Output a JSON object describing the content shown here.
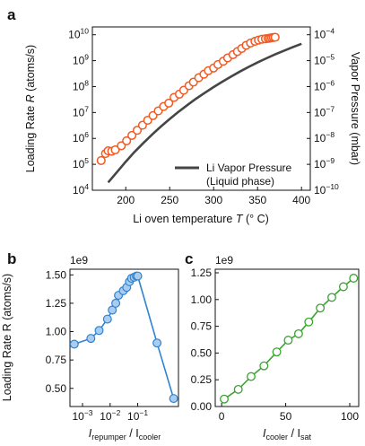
{
  "chart_data": [
    {
      "panel": "a",
      "type": "scatter",
      "xlabel": "Li oven temperature T (° C)",
      "ylabel": "Loading Rate R (atoms/s)",
      "y2label": "Vapor Pressure (mbar)",
      "xlim": [
        162,
        410
      ],
      "ylim": [
        10000,
        20000000000
      ],
      "yscale": "log",
      "y2lim": [
        1e-10,
        0.0002
      ],
      "y2scale": "log",
      "xticks": [
        200,
        250,
        300,
        350,
        400
      ],
      "yticks": [
        {
          "base": "10",
          "exp": "4"
        },
        {
          "base": "10",
          "exp": "5"
        },
        {
          "base": "10",
          "exp": "6"
        },
        {
          "base": "10",
          "exp": "7"
        },
        {
          "base": "10",
          "exp": "8"
        },
        {
          "base": "10",
          "exp": "9"
        },
        {
          "base": "10",
          "exp": "10"
        }
      ],
      "y2ticks": [
        {
          "base": "10",
          "exp": "−10"
        },
        {
          "base": "10",
          "exp": "−9"
        },
        {
          "base": "10",
          "exp": "−8"
        },
        {
          "base": "10",
          "exp": "−7"
        },
        {
          "base": "10",
          "exp": "−6"
        },
        {
          "base": "10",
          "exp": "−5"
        },
        {
          "base": "10",
          "exp": "−4"
        }
      ],
      "legend": {
        "position": "lower right",
        "line1": "Li Vapor Pressure",
        "line2": "(Liquid phase)"
      },
      "colors": {
        "points": "#f15a24",
        "vapor": "#454545"
      },
      "series": [
        {
          "kind": "markers",
          "x": [
            172,
            177,
            180,
            184,
            188,
            195,
            201,
            207,
            213,
            219,
            225,
            231,
            237,
            243,
            249,
            255,
            261,
            266,
            272,
            277,
            283,
            289,
            294,
            300,
            305,
            311,
            316,
            322,
            327,
            332,
            337,
            342,
            347,
            351,
            355,
            359,
            362,
            364,
            366,
            368,
            370
          ],
          "y": [
            140000.0,
            260000.0,
            330000.0,
            320000.0,
            360000.0,
            520000.0,
            810000.0,
            1300000.0,
            2050000.0,
            3200000.0,
            5000000.0,
            7600000.0,
            11500000.0,
            17000000.0,
            23000000.0,
            38000000.0,
            51000000.0,
            72000000.0,
            108000000.0,
            149000000.0,
            220000000.0,
            300000000.0,
            410000000.0,
            520000000.0,
            710000000.0,
            950000000.0,
            1280000000.0,
            1700000000.0,
            2250000000.0,
            2950000000.0,
            3900000000.0,
            4800000000.0,
            5600000000.0,
            6200000000.0,
            6700000000.0,
            7000000000.0,
            7200000000.0,
            7350000000.0,
            7600000000.0,
            7800000000.0,
            8000000000.0
          ]
        },
        {
          "kind": "line",
          "axis": "right",
          "x": [
            180,
            190,
            200,
            210,
            220,
            230,
            240,
            250,
            260,
            270,
            280,
            290,
            300,
            310,
            320,
            330,
            340,
            350,
            360,
            370,
            380,
            390,
            400
          ],
          "y": [
            2e-10,
            5e-10,
            1.26e-09,
            3e-09,
            6.6e-09,
            1.41e-08,
            2.88e-08,
            5.6e-08,
            1.06e-07,
            1.91e-07,
            3.39e-07,
            5.75e-07,
            9.55e-07,
            1.55e-06,
            2.45e-06,
            3.8e-06,
            5.75e-06,
            8.5e-06,
            1.23e-05,
            1.74e-05,
            2.4e-05,
            3.31e-05,
            4.47e-05
          ]
        }
      ]
    },
    {
      "panel": "b",
      "type": "line",
      "xlabel_main": "I",
      "xlabel_sub1": "repumper",
      "xlabel_sep": " / I",
      "xlabel_sub2": "cooler",
      "ylabel": "Loading Rate R (atoms/s)",
      "multiplier": "1e9",
      "xscale": "log",
      "xlim": [
        0.00035,
        3.0
      ],
      "ylim": [
        0.34,
        1.55
      ],
      "xticks": [
        {
          "base": "10",
          "exp": "−3",
          "value": 0.001
        },
        {
          "base": "10",
          "exp": "−2",
          "value": 0.01
        },
        {
          "base": "10",
          "exp": "−1",
          "value": 0.1
        }
      ],
      "yticks": [
        "0.50",
        "0.75",
        "1.00",
        "1.25",
        "1.50"
      ],
      "color": "#2f83d1",
      "x": [
        0.0005,
        0.002,
        0.004,
        0.008,
        0.012,
        0.016,
        0.02,
        0.03,
        0.04,
        0.05,
        0.06,
        0.075,
        0.09,
        0.1,
        0.5,
        2.0
      ],
      "y": [
        0.89,
        0.94,
        1.01,
        1.11,
        1.19,
        1.25,
        1.32,
        1.36,
        1.39,
        1.44,
        1.47,
        1.48,
        1.49,
        1.49,
        0.9,
        0.41
      ]
    },
    {
      "panel": "c",
      "type": "line",
      "xlabel_main": "I",
      "xlabel_sub1": "cooler",
      "xlabel_sep": " / I",
      "xlabel_sub2": "sat",
      "multiplier": "1e9",
      "xlim": [
        -5,
        107
      ],
      "ylim": [
        0.0,
        1.25
      ],
      "xticks": [
        "0",
        "50",
        "100"
      ],
      "yticks": [
        "0.00",
        "0.25",
        "0.50",
        "0.75",
        "1.00",
        "1.25"
      ],
      "color": "#3aa330",
      "x": [
        2,
        13,
        23,
        33,
        43,
        52,
        60,
        68,
        77,
        86,
        95,
        103
      ],
      "y": [
        0.07,
        0.16,
        0.28,
        0.38,
        0.51,
        0.62,
        0.68,
        0.79,
        0.92,
        1.02,
        1.12,
        1.2
      ]
    }
  ],
  "panel_letters": [
    "a",
    "b",
    "c"
  ]
}
